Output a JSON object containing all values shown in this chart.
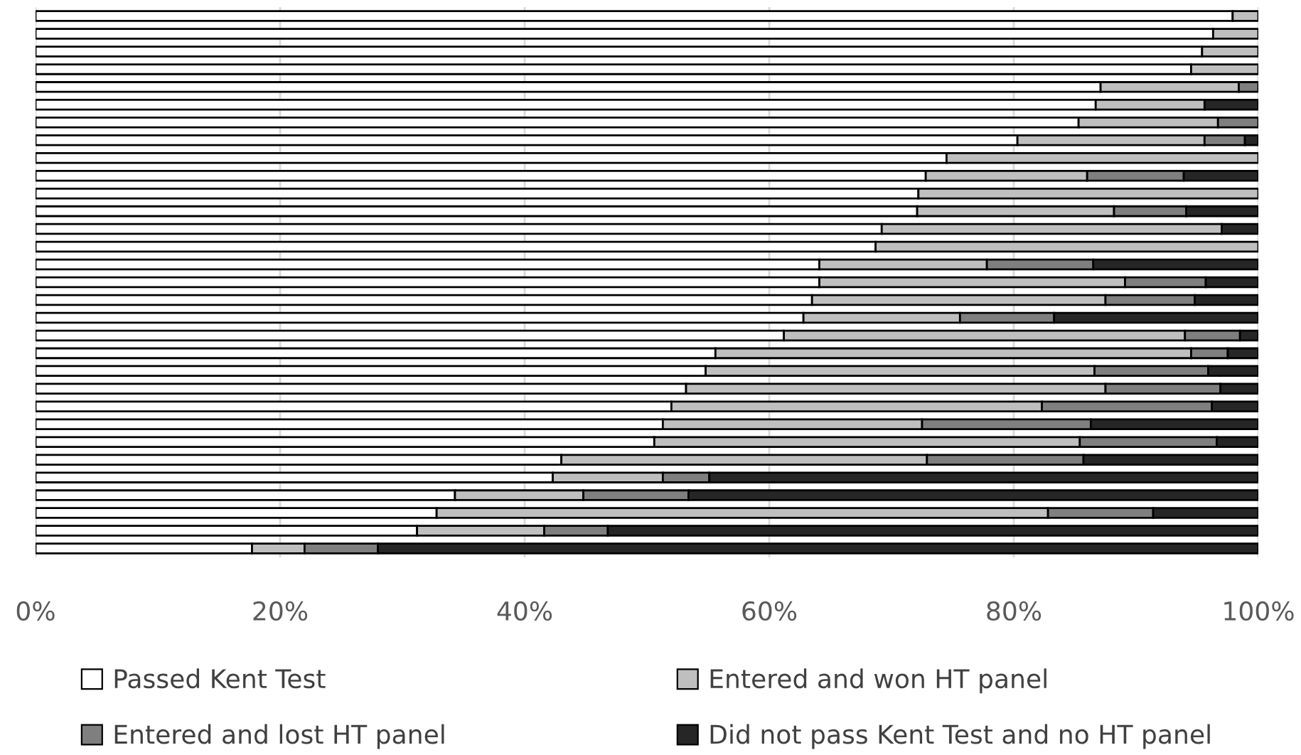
{
  "chart_data": {
    "type": "bar",
    "orientation": "horizontal",
    "stacked": true,
    "categories": [
      null,
      null,
      null,
      null,
      null,
      null,
      null,
      null,
      null,
      null,
      null,
      null,
      null,
      null,
      null,
      null,
      null,
      null,
      null,
      null,
      null,
      null,
      null,
      null,
      null,
      null,
      null,
      null,
      null,
      null,
      null
    ],
    "series": [
      {
        "name": "Passed Kent Test",
        "color": "#ffffff",
        "values": [
          97.9,
          96.3,
          95.4,
          94.5,
          87.1,
          86.7,
          85.3,
          80.3,
          74.5,
          72.8,
          72.2,
          72.1,
          69.2,
          68.7,
          64.1,
          64.1,
          63.5,
          62.8,
          61.2,
          55.6,
          54.8,
          53.2,
          52.0,
          51.3,
          50.6,
          43.0,
          42.3,
          34.3,
          32.8,
          31.2,
          17.7
        ]
      },
      {
        "name": "Entered and won HT panel",
        "color": "#bfbfbf",
        "values": [
          2.1,
          3.7,
          4.6,
          5.5,
          11.3,
          8.9,
          11.4,
          15.3,
          25.5,
          13.2,
          27.8,
          16.1,
          27.8,
          31.3,
          13.7,
          25.0,
          24.0,
          12.8,
          32.8,
          38.9,
          31.8,
          34.3,
          30.3,
          21.2,
          34.8,
          29.9,
          9.0,
          10.5,
          50.0,
          10.4,
          4.3
        ]
      },
      {
        "name": "Entered and lost HT panel",
        "color": "#7f7f7f",
        "values": [
          null,
          null,
          null,
          null,
          1.6,
          null,
          3.3,
          3.3,
          null,
          7.9,
          null,
          5.9,
          null,
          null,
          8.7,
          6.6,
          7.3,
          7.7,
          4.5,
          3.0,
          9.3,
          9.4,
          13.9,
          13.8,
          11.2,
          12.8,
          3.8,
          8.6,
          8.6,
          5.2,
          6.0
        ]
      },
      {
        "name": "Did not pass Kent Test and no HT panel",
        "color": "#262626",
        "values": [
          null,
          null,
          null,
          null,
          null,
          4.4,
          null,
          1.1,
          null,
          6.1,
          null,
          5.9,
          3.0,
          null,
          13.5,
          4.3,
          5.2,
          16.7,
          1.5,
          2.5,
          4.1,
          3.1,
          3.8,
          13.7,
          3.4,
          14.3,
          44.9,
          46.6,
          8.6,
          53.2,
          72.0
        ]
      }
    ],
    "xlim": [
      0,
      100
    ],
    "xticks": [
      {
        "value": 0,
        "label": "0%"
      },
      {
        "value": 20,
        "label": "20%"
      },
      {
        "value": 40,
        "label": "40%"
      },
      {
        "value": 60,
        "label": "60%"
      },
      {
        "value": 80,
        "label": "80%"
      },
      {
        "value": 100,
        "label": "100%"
      }
    ],
    "grid": "x",
    "legend": "bottom"
  }
}
